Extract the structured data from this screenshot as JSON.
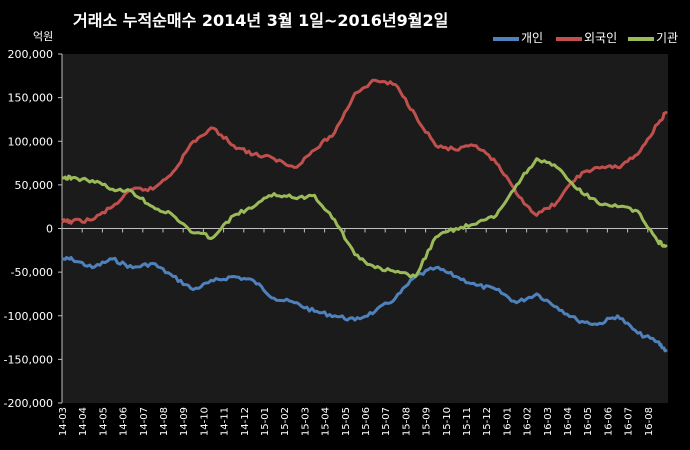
{
  "chart_data": {
    "type": "line",
    "title": "거래소 누적순매수 2014년 3월 1일~2016년9월2일",
    "unit": "억원",
    "ylim": [
      -200000,
      200000
    ],
    "yticks": [
      200000,
      150000,
      100000,
      50000,
      0,
      -50000,
      -100000,
      -150000,
      -200000
    ],
    "ytick_labels": [
      "200,000",
      "150,000",
      "100,000",
      "50,000",
      "0",
      "-50,000",
      "-100,000",
      "-150,000",
      "-200,000"
    ],
    "categories": [
      "14-03",
      "14-04",
      "14-05",
      "14-06",
      "14-07",
      "14-08",
      "14-09",
      "14-10",
      "14-11",
      "14-12",
      "15-01",
      "15-02",
      "15-03",
      "15-04",
      "15-05",
      "15-06",
      "15-07",
      "15-08",
      "15-09",
      "15-10",
      "15-11",
      "15-12",
      "16-01",
      "16-02",
      "16-03",
      "16-04",
      "16-05",
      "16-06",
      "16-07",
      "16-08"
    ],
    "legend_position": "top-right",
    "grid": false,
    "series": [
      {
        "name": "개인",
        "color": "#4F81BD",
        "values": [
          -35000,
          -45000,
          -35000,
          -45000,
          -40000,
          -55000,
          -70000,
          -60000,
          -55000,
          -60000,
          -80000,
          -85000,
          -95000,
          -100000,
          -105000,
          -95000,
          -80000,
          -55000,
          -45000,
          -55000,
          -65000,
          -70000,
          -85000,
          -75000,
          -90000,
          -105000,
          -110000,
          -100000,
          -120000,
          -130000
        ],
        "end_value": -140000
      },
      {
        "name": "외국인",
        "color": "#C0504D",
        "values": [
          8000,
          10000,
          25000,
          45000,
          45000,
          65000,
          100000,
          115000,
          95000,
          85000,
          80000,
          70000,
          90000,
          110000,
          155000,
          170000,
          165000,
          130000,
          95000,
          90000,
          95000,
          75000,
          40000,
          15000,
          30000,
          60000,
          70000,
          70000,
          85000,
          120000
        ],
        "end_value": 133000
      },
      {
        "name": "기관",
        "color": "#9BBB59",
        "values": [
          58000,
          55000,
          45000,
          42000,
          25000,
          15000,
          -5000,
          -10000,
          15000,
          25000,
          40000,
          35000,
          38000,
          10000,
          -30000,
          -45000,
          -50000,
          -55000,
          -10000,
          0,
          5000,
          15000,
          50000,
          80000,
          70000,
          45000,
          30000,
          25000,
          20000,
          -15000
        ],
        "end_value": -20000
      }
    ]
  }
}
